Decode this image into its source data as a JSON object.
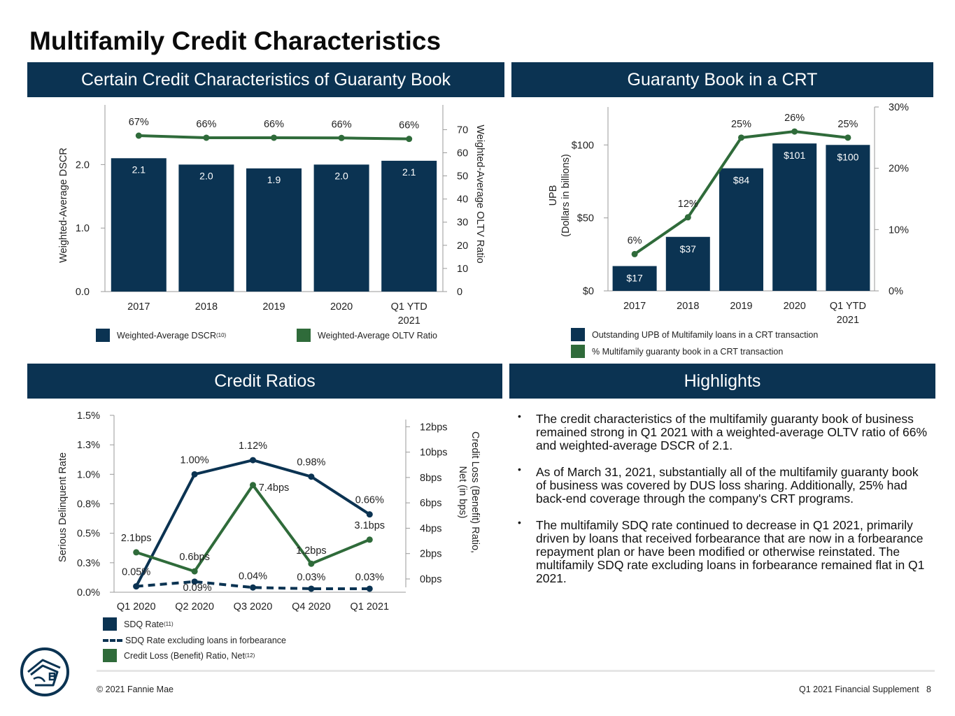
{
  "page": {
    "title": "Multifamily Credit Characteristics",
    "footer_left": "© 2021 Fannie Mae",
    "footer_right": "Q1 2021 Financial Supplement   8"
  },
  "sections": {
    "guaranty_book": "Certain Credit Characteristics of Guaranty Book",
    "crt": "Guaranty Book in a CRT",
    "credit_ratios": "Credit Ratios",
    "highlights": "Highlights"
  },
  "colors": {
    "navy": "#0b3352",
    "green": "#2f6b3a",
    "axis": "#9a9a9a"
  },
  "chart_data": [
    {
      "id": "dscr_oltv",
      "type": "bar",
      "categories": [
        "2017",
        "2018",
        "2019",
        "2020",
        "Q1 YTD 2021"
      ],
      "series": [
        {
          "name": "Weighted-Average DSCR",
          "kind": "bar",
          "axis": "left",
          "values": [
            2.1,
            2.0,
            1.9,
            2.0,
            2.1
          ],
          "labels": [
            "2.1",
            "2.0",
            "1.9",
            "2.0",
            "2.1"
          ]
        },
        {
          "name": "Weighted-Average OLTV Ratio",
          "kind": "line",
          "axis": "right",
          "values": [
            67,
            66,
            66,
            66,
            66
          ],
          "labels": [
            "67%",
            "66%",
            "66%",
            "66%",
            "66%"
          ]
        }
      ],
      "bar_heights_exact": [
        2.1,
        2.0,
        1.94,
        2.0,
        2.06
      ],
      "line_exact": [
        67.4,
        66.5,
        66.5,
        66.4,
        66.0
      ],
      "ylabel": "Weighted-Average DSCR",
      "y2label": "Weighted-Average OLTV Ratio",
      "ylim": [
        0,
        2.94
      ],
      "y2lim": [
        0,
        70
      ],
      "yticks": [
        "0.0",
        "1.0",
        "2.0"
      ],
      "yticks_values": [
        0,
        1,
        2
      ],
      "y2ticks": [
        "0",
        "10",
        "20",
        "30",
        "40",
        "50",
        "60",
        "70"
      ],
      "y2ticks_values": [
        0,
        10,
        20,
        30,
        40,
        50,
        60,
        70
      ],
      "legend": [
        {
          "label": "Weighted-Average DSCR",
          "sup": "(10)"
        },
        {
          "label": "Weighted-Average OLTV Ratio",
          "sup": ""
        }
      ]
    },
    {
      "id": "crt",
      "type": "bar",
      "categories": [
        "2017",
        "2018",
        "2019",
        "2020",
        "Q1 YTD 2021"
      ],
      "series": [
        {
          "name": "Outstanding UPB of Multifamily loans in a CRT transaction",
          "kind": "bar",
          "axis": "left",
          "values": [
            17,
            37,
            84,
            101,
            100
          ],
          "labels": [
            "$17",
            "$37",
            "$84",
            "$101",
            "$100"
          ]
        },
        {
          "name": "% Multifamily guaranty book in a CRT transaction",
          "kind": "line",
          "axis": "right",
          "values": [
            6,
            12,
            25,
            26,
            25
          ],
          "labels": [
            "6%",
            "12%",
            "25%",
            "26%",
            "25%"
          ]
        }
      ],
      "ylabel_line1": "UPB",
      "ylabel_line2": "(Dollars in billions)",
      "ylim": [
        0,
        126
      ],
      "y2lim": [
        0,
        30
      ],
      "yticks": [
        "$0",
        "$50",
        "$100"
      ],
      "yticks_values": [
        0,
        50,
        100
      ],
      "y2ticks": [
        "0%",
        "10%",
        "20%",
        "30%"
      ],
      "y2ticks_values": [
        0,
        10,
        20,
        30
      ],
      "legend": [
        {
          "label": "Outstanding UPB of Multifamily loans in a CRT transaction"
        },
        {
          "label": "% Multifamily guaranty book in a CRT transaction"
        }
      ]
    },
    {
      "id": "credit_ratios",
      "type": "line",
      "categories": [
        "Q1 2020",
        "Q2 2020",
        "Q3 2020",
        "Q4 2020",
        "Q1 2021"
      ],
      "series": [
        {
          "name": "SDQ Rate",
          "axis": "left",
          "style": "solid",
          "color": "navy",
          "values": [
            0.05,
            1.0,
            1.12,
            0.98,
            0.66
          ],
          "labels": [
            "0.05%",
            "1.00%",
            "1.12%",
            "0.98%",
            "0.66%"
          ]
        },
        {
          "name": "SDQ Rate excluding loans in forbearance",
          "axis": "left",
          "style": "dashed",
          "color": "navy",
          "values": [
            0.05,
            0.09,
            0.04,
            0.03,
            0.03
          ],
          "labels": [
            "",
            "0.09%",
            "0.04%",
            "0.03%",
            "0.03%"
          ]
        },
        {
          "name": "Credit Loss (Benefit) Ratio, Net",
          "axis": "right",
          "style": "solid",
          "color": "green",
          "values": [
            2.1,
            0.6,
            7.4,
            1.2,
            3.1
          ],
          "labels": [
            "2.1bps",
            "0.6bps",
            "7.4bps",
            "1.2bps",
            "3.1bps"
          ]
        }
      ],
      "ylabel": "Serious Delinquent Rate",
      "y2label_line1": "Credit Loss (Benefit) Ratio,",
      "y2label_line2": "Net (in bps)",
      "ylim": [
        0,
        1.5
      ],
      "y2lim": [
        -1,
        13
      ],
      "yticks": [
        "0.0%",
        "0.3%",
        "0.5%",
        "0.8%",
        "1.0%",
        "1.3%",
        "1.5%"
      ],
      "yticks_values": [
        0,
        0.25,
        0.5,
        0.75,
        1.0,
        1.25,
        1.5
      ],
      "y2ticks": [
        "0bps",
        "2bps",
        "4bps",
        "6bps",
        "8bps",
        "10bps",
        "12bps"
      ],
      "y2ticks_values": [
        0,
        2,
        4,
        6,
        8,
        10,
        12
      ],
      "legend": [
        {
          "label": "SDQ Rate",
          "sup": "(11)"
        },
        {
          "label": "SDQ Rate excluding loans in forbearance",
          "sup": ""
        },
        {
          "label": "Credit Loss (Benefit) Ratio, Net",
          "sup": "(12)"
        }
      ]
    }
  ],
  "highlights": [
    "The credit characteristics of the multifamily guaranty book of business remained strong in Q1 2021 with a weighted-average OLTV ratio of 66% and weighted-average DSCR of 2.1.",
    "As of March 31, 2021, substantially all of the multifamily guaranty book of business was covered by DUS loss sharing. Additionally, 25% had back-end coverage through the company's CRT programs.",
    "The multifamily SDQ rate continued to decrease in Q1 2021, primarily driven by loans that received forbearance that are now in a forbearance repayment plan or have been modified or otherwise reinstated. The multifamily SDQ rate excluding loans in forbearance remained flat in Q1 2021."
  ]
}
